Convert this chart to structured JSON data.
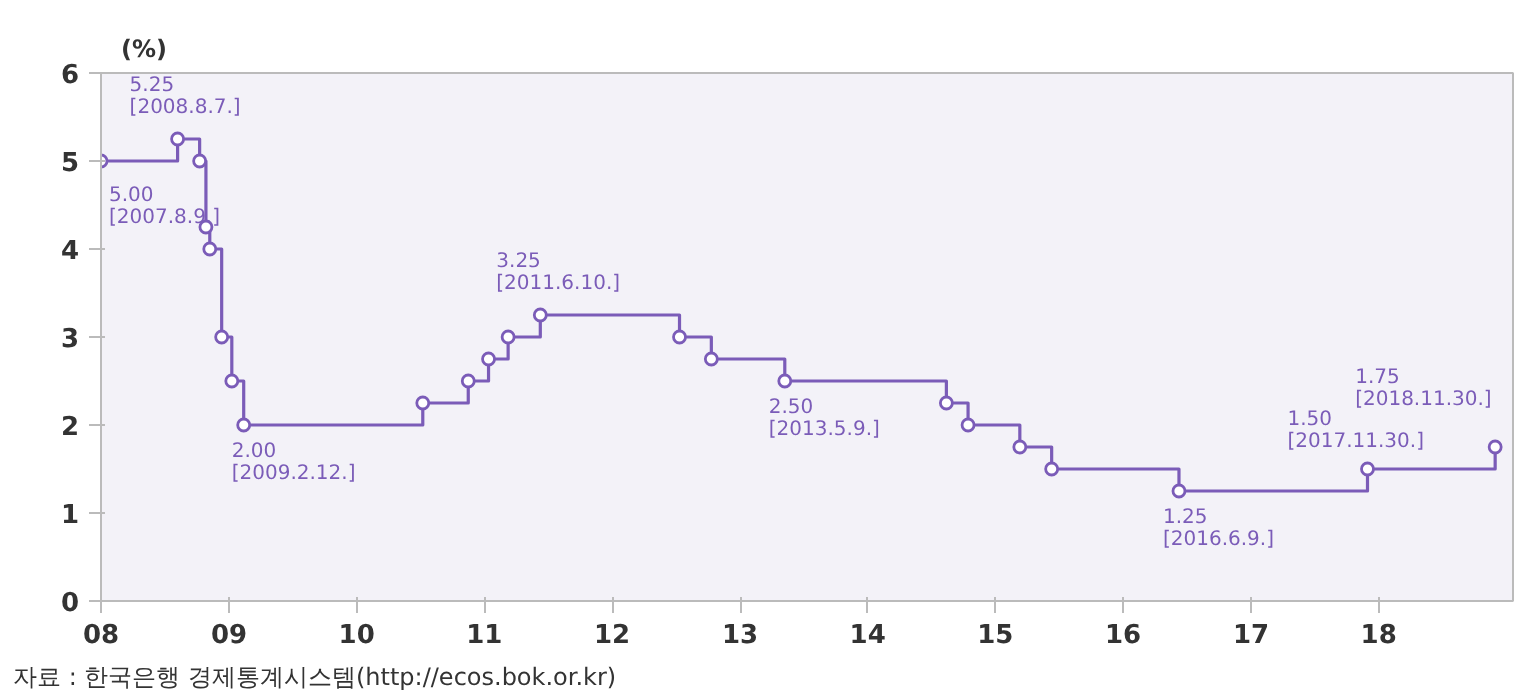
{
  "chart_data": {
    "type": "step",
    "ylabel": "(%)",
    "x": [
      "2008-01-01",
      "2008-08-07",
      "2008-10-09",
      "2008-10-27",
      "2008-11-07",
      "2008-12-11",
      "2009-01-09",
      "2009-02-12",
      "2010-07-09",
      "2010-11-16",
      "2011-01-13",
      "2011-03-10",
      "2011-06-10",
      "2012-07-12",
      "2012-10-11",
      "2013-05-09",
      "2014-08-14",
      "2014-10-15",
      "2015-03-12",
      "2015-06-11",
      "2016-06-09",
      "2017-11-30",
      "2018-11-30"
    ],
    "series": [
      {
        "color": "#7b5cb8",
        "values": [
          5.0,
          5.25,
          5.0,
          4.25,
          4.0,
          3.0,
          2.5,
          2.0,
          2.25,
          2.5,
          2.75,
          3.0,
          3.25,
          3.0,
          2.75,
          2.5,
          2.25,
          2.0,
          1.75,
          1.5,
          1.25,
          1.5,
          1.75
        ]
      }
    ],
    "xlim": [
      "2008-01-01",
      "2019-01-20"
    ],
    "xticks": [
      {
        "value": "2008-01-01",
        "label": "08"
      },
      {
        "value": "2009-01-01",
        "label": "09"
      },
      {
        "value": "2010-01-01",
        "label": "10"
      },
      {
        "value": "2011-01-01",
        "label": "11"
      },
      {
        "value": "2012-01-01",
        "label": "12"
      },
      {
        "value": "2013-01-01",
        "label": "13"
      },
      {
        "value": "2014-01-01",
        "label": "14"
      },
      {
        "value": "2015-01-01",
        "label": "15"
      },
      {
        "value": "2016-01-01",
        "label": "16"
      },
      {
        "value": "2017-01-01",
        "label": "17"
      },
      {
        "value": "2018-01-01",
        "label": "18"
      }
    ],
    "ylim": [
      0,
      6
    ],
    "yticks": [
      0,
      1,
      2,
      3,
      4,
      5,
      6
    ],
    "grid": false,
    "marker": "circle",
    "line_style": "solid",
    "annotations": [
      {
        "text": "5.25\n[2008.8.7.]",
        "x": "2008-08-07",
        "y": 5.25
      },
      {
        "text": "5.00\n[2007.8.9.]",
        "x": "2008-01-01",
        "y": 5.0
      },
      {
        "text": "2.00\n[2009.2.12.]",
        "x": "2009-02-12",
        "y": 2.0
      },
      {
        "text": "3.25\n[2011.6.10.]",
        "x": "2011-06-10",
        "y": 3.25
      },
      {
        "text": "2.50\n[2013.5.9.]",
        "x": "2013-05-09",
        "y": 2.5
      },
      {
        "text": "1.25\n[2016.6.9.]",
        "x": "2016-06-09",
        "y": 1.25
      },
      {
        "text": "1.50\n[2017.11.30.]",
        "x": "2017-11-30",
        "y": 1.5
      },
      {
        "text": "1.75\n[2018.11.30.]",
        "x": "2018-11-30",
        "y": 1.75
      },
      "자료 : 한국은행 경제통계시스템(http://ecos.bok.or.kr)"
    ]
  }
}
